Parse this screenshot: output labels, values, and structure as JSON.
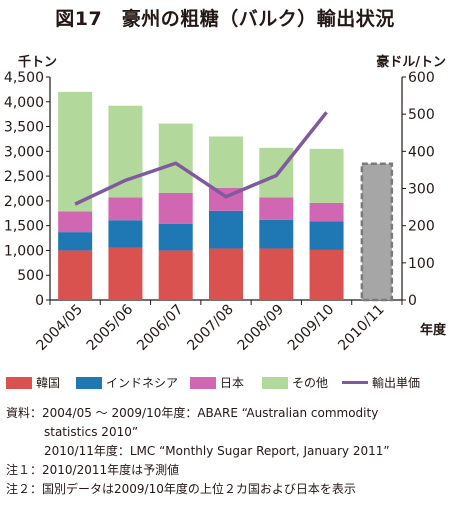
{
  "title": "図17　豪州の粗糖（バルク）輸出状況",
  "chart_data": {
    "type": "bar",
    "stacked": true,
    "left_axis": {
      "unit": "千トン",
      "ticks": [
        "0",
        "500",
        "1,000",
        "1,500",
        "2,000",
        "2,500",
        "3,000",
        "3,500",
        "4,000",
        "4,500"
      ],
      "ylim": [
        0,
        4500
      ]
    },
    "right_axis": {
      "unit": "豪ドル/トン",
      "ticks": [
        "0",
        "100",
        "200",
        "300",
        "400",
        "500",
        "600"
      ],
      "ylim": [
        0,
        600
      ]
    },
    "x_axis_label": "年度",
    "categories": [
      "2004/05",
      "2005/06",
      "2006/07",
      "2007/08",
      "2008/09",
      "2009/10",
      "2010/11"
    ],
    "series": [
      {
        "name": "韓国",
        "color": "#d9524f",
        "values": [
          1000,
          1060,
          1000,
          1040,
          1040,
          1010,
          null
        ]
      },
      {
        "name": "インドネシア",
        "color": "#1f78b4",
        "values": [
          370,
          550,
          540,
          760,
          580,
          580,
          null
        ]
      },
      {
        "name": "日本",
        "color": "#d166b3",
        "values": [
          420,
          460,
          620,
          460,
          450,
          370,
          null
        ]
      },
      {
        "name": "その他",
        "color": "#b3d89c",
        "values": [
          2410,
          1850,
          1400,
          1040,
          1000,
          1090,
          null
        ]
      }
    ],
    "forecast": {
      "category": "2010/11",
      "total": 2750,
      "color": "#a6a6a6"
    },
    "line": {
      "name": "輸出単価",
      "color": "#7f5a9e",
      "axis": "right",
      "values": [
        258,
        322,
        368,
        278,
        335,
        505,
        null
      ]
    }
  },
  "legend": {
    "items": [
      {
        "label": "韓国",
        "color": "#d9524f",
        "kind": "box"
      },
      {
        "label": "インドネシア",
        "color": "#1f78b4",
        "kind": "box"
      },
      {
        "label": "日本",
        "color": "#d166b3",
        "kind": "box"
      },
      {
        "label": "その他",
        "color": "#b3d89c",
        "kind": "box"
      },
      {
        "label": "輸出単価",
        "color": "#7f5a9e",
        "kind": "line"
      }
    ]
  },
  "notes": {
    "source_1": "資料：2004/05 ～ 2009/10年度：ABARE “Australian commodity",
    "source_2": "statistics 2010”",
    "source_3": "2010/11年度：LMC “Monthly Sugar Report, January 2011”",
    "note_1": "注１：2010/2011年度は予測値",
    "note_2": "注２：国別データは2009/10年度の上位２カ国および日本を表示"
  }
}
